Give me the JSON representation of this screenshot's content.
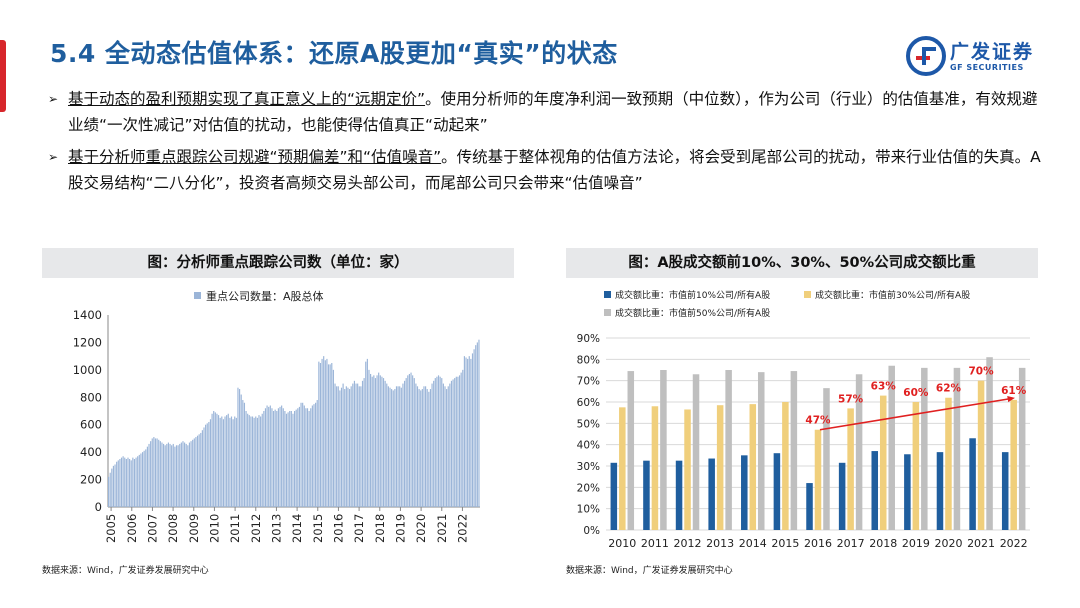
{
  "title": "5.4 全动态估值体系：还原A股更加“真实”的状态",
  "logo": {
    "name_cn": "广发证券",
    "name_en": "GF SECURITIES"
  },
  "bullets": [
    {
      "lead": "基于动态的盈利预期实现了真正意义上的“远期定价”",
      "text": "。使用分析师的年度净利润一致预期（中位数），作为公司（行业）的估值基准，有效规避业绩“一次性减记”对估值的扰动，也能使得估值真正“动起来”"
    },
    {
      "lead": "基于分析师重点跟踪公司规避“预期偏差”和“估值噪音”",
      "text": "。传统基于整体视角的估值方法论，将会受到尾部公司的扰动，带来行业估值的失真。A股交易结构“二八分化”，投资者高频交易头部公司，而尾部公司只会带来“估值噪音”"
    }
  ],
  "left_chart": {
    "heading": "图：分析师重点跟踪公司数（单位：家）",
    "source": "数据来源：Wind，广发证券发展研究中心"
  },
  "right_chart": {
    "heading": "图：A股成交额前10%、30%、50%公司成交额比重",
    "source": "数据来源：Wind，广发证券发展研究中心"
  },
  "colors": {
    "title_blue": "#1f5e9e",
    "bar_blue": "#9bb5d8",
    "navy": "#1f5e9e",
    "gold": "#f0cf7c",
    "gray": "#bfbfbf",
    "red": "#e02020"
  },
  "chart_data": [
    {
      "type": "bar",
      "legend": "重点公司数量：A股总体",
      "x_ticks": [
        "2005",
        "2006",
        "2007",
        "2008",
        "2009",
        "2010",
        "2011",
        "2012",
        "2013",
        "2014",
        "2015",
        "2016",
        "2017",
        "2018",
        "2019",
        "2020",
        "2021",
        "2022"
      ],
      "ylim": [
        0,
        1400
      ],
      "y_ticks": [
        0,
        200,
        400,
        600,
        800,
        1000,
        1200,
        1400
      ],
      "series": [
        {
          "name": "重点公司数量：A股总体",
          "values": [
            220,
            250,
            280,
            300,
            310,
            330,
            340,
            350,
            360,
            370,
            360,
            350,
            360,
            350,
            340,
            360,
            350,
            360,
            370,
            380,
            390,
            400,
            410,
            420,
            440,
            460,
            480,
            500,
            510,
            500,
            500,
            490,
            480,
            470,
            460,
            450,
            460,
            470,
            460,
            450,
            460,
            440,
            450,
            450,
            460,
            470,
            480,
            470,
            460,
            450,
            470,
            480,
            490,
            500,
            510,
            520,
            530,
            540,
            560,
            580,
            600,
            610,
            620,
            640,
            680,
            700,
            690,
            680,
            670,
            650,
            660,
            640,
            660,
            670,
            680,
            650,
            660,
            640,
            660,
            650,
            870,
            860,
            820,
            780,
            760,
            700,
            680,
            670,
            660,
            660,
            650,
            660,
            650,
            670,
            660,
            680,
            700,
            720,
            740,
            730,
            740,
            720,
            700,
            710,
            700,
            720,
            730,
            740,
            720,
            700,
            680,
            690,
            700,
            700,
            680,
            700,
            710,
            720,
            730,
            760,
            760,
            740,
            720,
            720,
            700,
            720,
            740,
            750,
            760,
            780,
            1060,
            1050,
            1080,
            1100,
            1070,
            1080,
            1040,
            1040,
            1050,
            1000,
            900,
            880,
            880,
            850,
            870,
            900,
            860,
            880,
            870,
            860,
            880,
            900,
            920,
            900,
            900,
            880,
            880,
            920,
            940,
            1060,
            1080,
            1000,
            970,
            950,
            960,
            940,
            960,
            980,
            960,
            950,
            940,
            920,
            900,
            880,
            870,
            860,
            850,
            860,
            880,
            880,
            880,
            870,
            900,
            920,
            940,
            960,
            970,
            980,
            960,
            940,
            900,
            880,
            860,
            850,
            860,
            880,
            880,
            860,
            840,
            860,
            900,
            920,
            940,
            950,
            960,
            950,
            940,
            900,
            880,
            860,
            880,
            900,
            920,
            930,
            940,
            950,
            950,
            960,
            980,
            1000,
            1100,
            1090,
            1080,
            1100,
            1080,
            1120,
            1150,
            1180,
            1200,
            1220
          ]
        }
      ]
    },
    {
      "type": "bar",
      "categories": [
        "2010",
        "2011",
        "2012",
        "2013",
        "2014",
        "2015",
        "2016",
        "2017",
        "2018",
        "2019",
        "2020",
        "2021",
        "2022"
      ],
      "ylim": [
        0,
        90
      ],
      "y_ticks": [
        "0%",
        "10%",
        "20%",
        "30%",
        "40%",
        "50%",
        "60%",
        "70%",
        "80%",
        "90%"
      ],
      "series": [
        {
          "name": "成交额比重：市值前10%公司/所有A股",
          "values": [
            31.5,
            32.5,
            32.5,
            33.5,
            35,
            36,
            22,
            31.5,
            37,
            35.5,
            36.5,
            43,
            36.5
          ]
        },
        {
          "name": "成交额比重：市值前30%公司/所有A股",
          "values": [
            57.5,
            58,
            56.5,
            58.5,
            59,
            60,
            47,
            57,
            63,
            60,
            62,
            70,
            61
          ]
        },
        {
          "name": "成交额比重：市值前50%公司/所有A股",
          "values": [
            74.5,
            75,
            73,
            75,
            74,
            74.5,
            66.5,
            73,
            77,
            76,
            76,
            81,
            76
          ]
        }
      ],
      "annotations": [
        {
          "category": "2016",
          "label": "47%"
        },
        {
          "category": "2017",
          "label": "57%"
        },
        {
          "category": "2018",
          "label": "63%"
        },
        {
          "category": "2019",
          "label": "60%"
        },
        {
          "category": "2020",
          "label": "62%"
        },
        {
          "category": "2021",
          "label": "70%"
        },
        {
          "category": "2022",
          "label": "61%"
        }
      ],
      "trend_arrow": {
        "from": "2016",
        "to": "2022"
      }
    }
  ]
}
